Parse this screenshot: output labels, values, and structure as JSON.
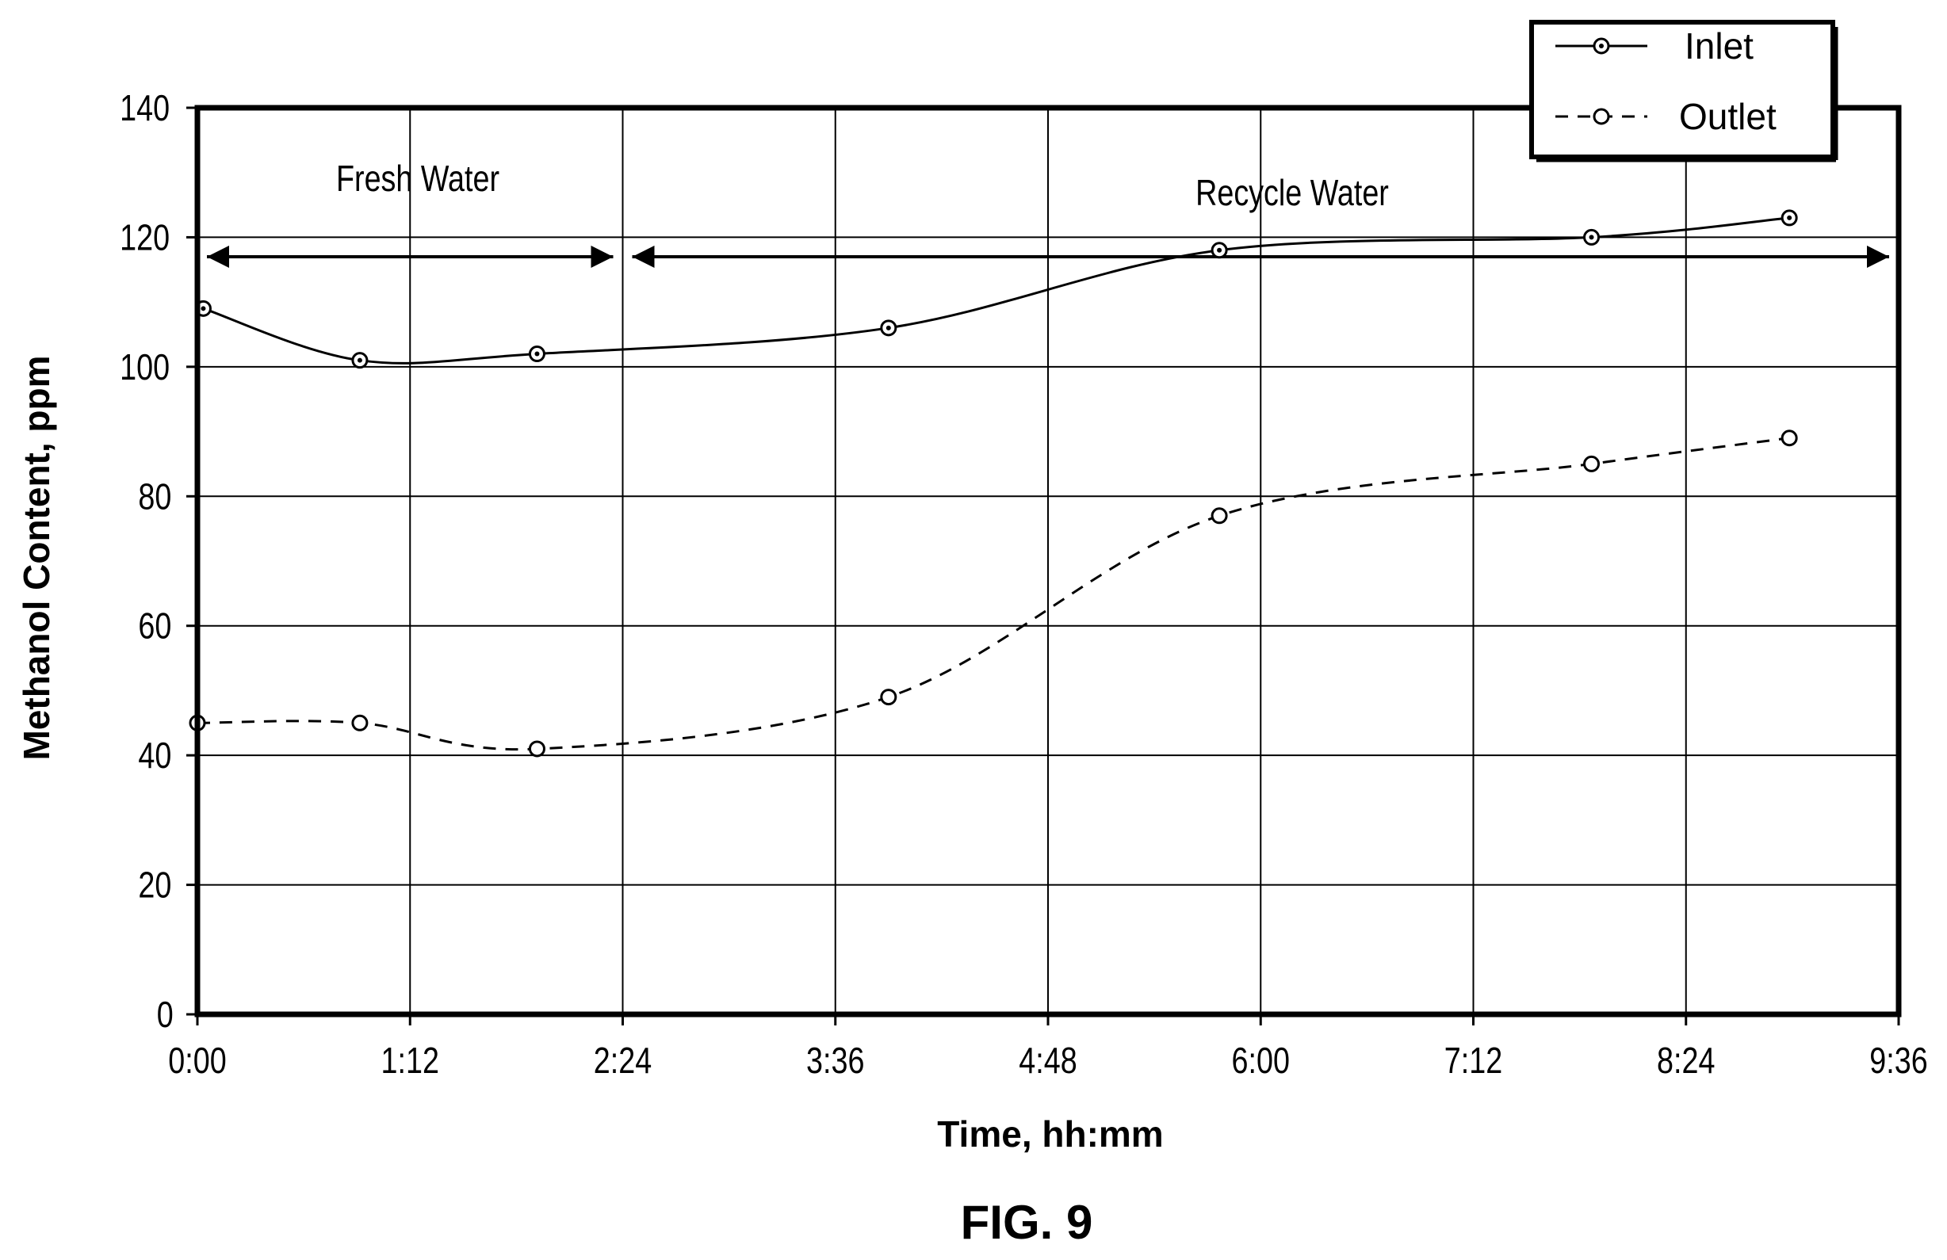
{
  "chart_data": {
    "type": "line",
    "x_unit": "hh:mm",
    "xlim": [
      "0:00",
      "9:36"
    ],
    "ylim": [
      0,
      140
    ],
    "x_ticks": [
      "0:00",
      "1:12",
      "2:24",
      "3:36",
      "4:48",
      "6:00",
      "7:12",
      "8:24",
      "9:36"
    ],
    "y_ticks": [
      "0",
      "20",
      "40",
      "60",
      "80",
      "100",
      "120",
      "140"
    ],
    "xlabel": "Time, hh:mm",
    "ylabel": "Methanol Content, ppm",
    "grid": true,
    "legend_position": "top-right",
    "series": [
      {
        "name": "Inlet",
        "line_style": "solid",
        "marker": "circle-dot",
        "color": "#000000",
        "x": [
          "0:02",
          "0:55",
          "1:55",
          "3:54",
          "5:46",
          "7:52",
          "8:59"
        ],
        "y": [
          109,
          101,
          102,
          106,
          118,
          120,
          123
        ]
      },
      {
        "name": "Outlet",
        "line_style": "dashed",
        "marker": "circle",
        "color": "#000000",
        "x": [
          "0:00",
          "0:55",
          "1:55",
          "3:54",
          "5:46",
          "7:52",
          "8:59"
        ],
        "y": [
          45,
          45,
          41,
          49,
          77,
          85,
          89
        ]
      }
    ],
    "annotations": [
      {
        "text": "Fresh Water",
        "x_from": "0:00",
        "x_to": "2:24",
        "y": 117
      },
      {
        "text": "Recycle Water",
        "x_from": "2:24",
        "x_to": "9:36",
        "y": 117
      }
    ]
  },
  "figure_label": "FIG. 9"
}
